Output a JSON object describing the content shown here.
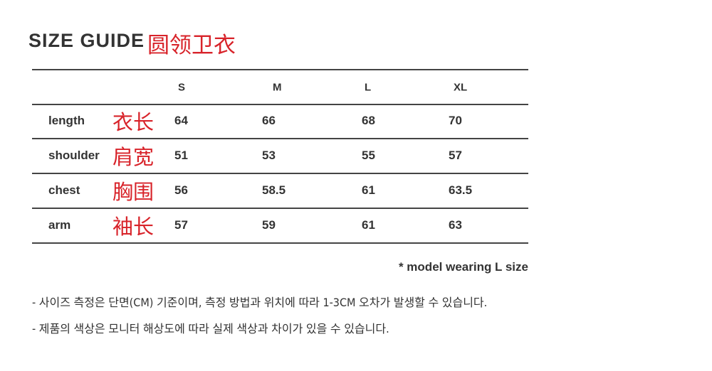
{
  "title": "SIZE GUIDE",
  "title_cn": "圆领卫衣",
  "columns": [
    "S",
    "M",
    "L",
    "XL"
  ],
  "rows": [
    {
      "label": "length",
      "label_cn": "衣长",
      "values": [
        "64",
        "66",
        "68",
        "70"
      ]
    },
    {
      "label": "shoulder",
      "label_cn": "肩宽",
      "values": [
        "51",
        "53",
        "55",
        "57"
      ]
    },
    {
      "label": "chest",
      "label_cn": "胸围",
      "values": [
        "56",
        "58.5",
        "61",
        "63.5"
      ]
    },
    {
      "label": "arm",
      "label_cn": "袖长",
      "values": [
        "57",
        "59",
        "61",
        "63"
      ]
    }
  ],
  "model_note": "* model wearing L size",
  "notes": [
    "- 사이즈 측정은 단면(CM) 기준이며, 측정 방법과 위치에 따라 1-3CM 오차가 발생할 수 있습니다.",
    "- 제품의 색상은 모니터 해상도에 따라 실제 색상과 차이가 있을 수 있습니다."
  ],
  "colors": {
    "accent_red": "#d8232a",
    "text": "#333333"
  }
}
